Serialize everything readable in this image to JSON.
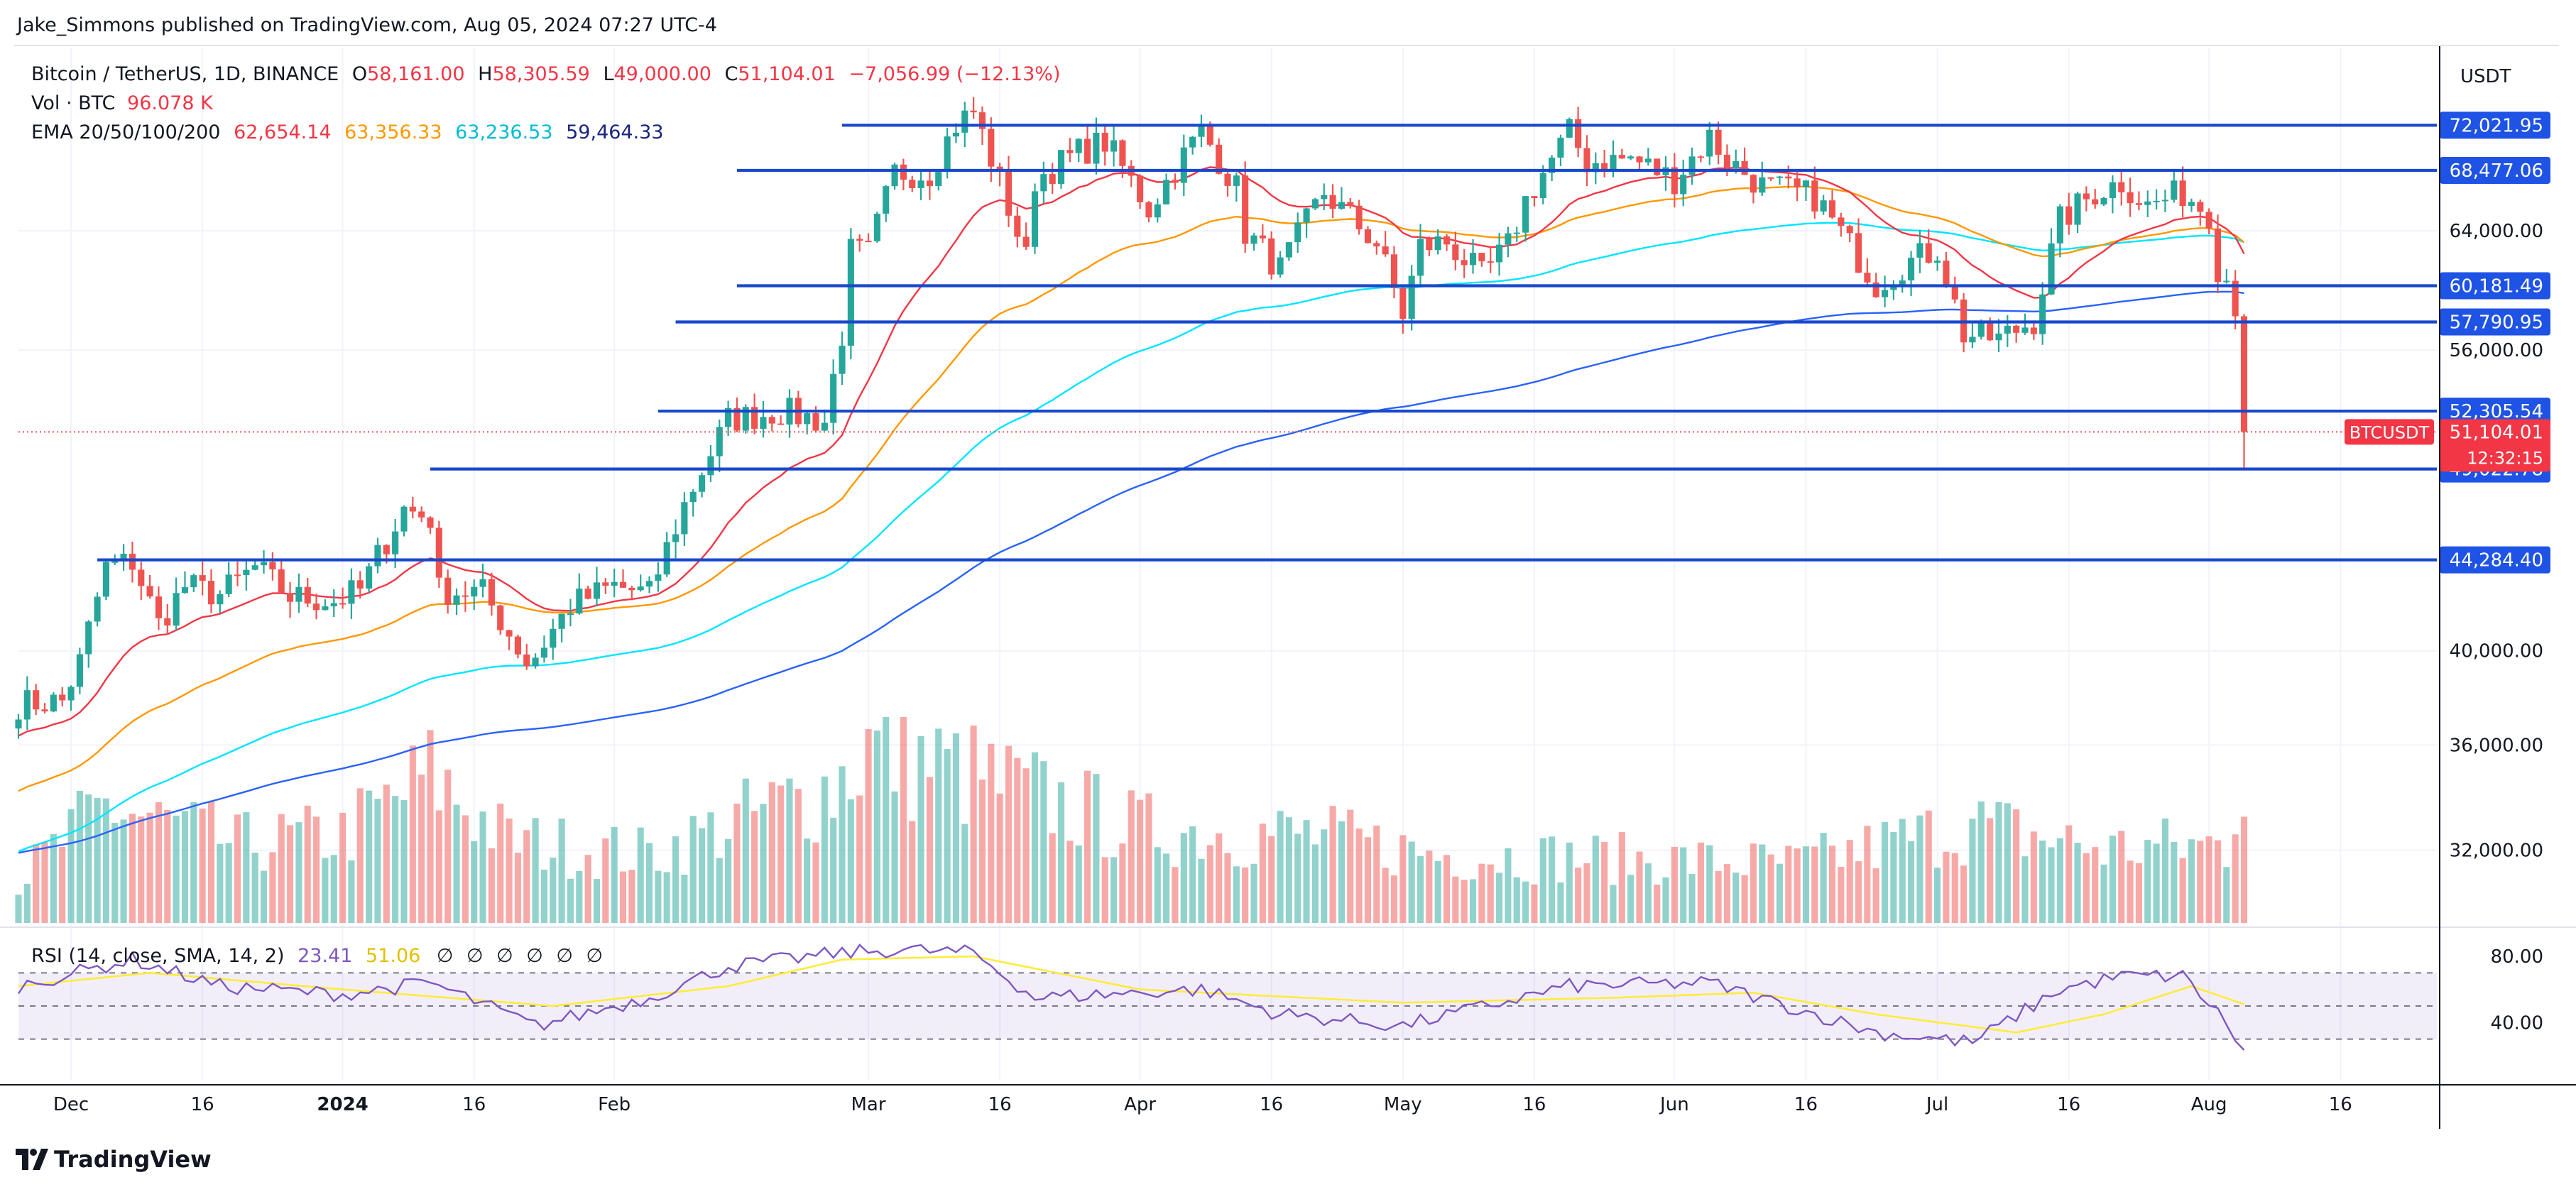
{
  "header": {
    "publisher": "Jake_Simmons published on TradingView.com, Aug 05, 2024 07:27 UTC-4",
    "symbol": "Bitcoin / TetherUS, 1D, BINANCE",
    "o_label": "O",
    "o_value": "58,161.00",
    "h_label": "H",
    "h_value": "58,305.59",
    "l_label": "L",
    "l_value": "49,000.00",
    "c_label": "C",
    "c_value": "51,104.01",
    "change": "−7,056.99 (−12.13%)",
    "vol_label": "Vol · BTC",
    "vol_value": "96.078 K",
    "ema_label": "EMA 20/50/100/200",
    "ema_values": [
      "62,654.14",
      "63,356.33",
      "63,236.53",
      "59,464.33"
    ],
    "rsi_label": "RSI (14, close, SMA, 14, 2)",
    "rsi_values": [
      "23.41",
      "51.06"
    ],
    "rsi_empty": [
      "∅",
      "∅",
      "∅",
      "∅",
      "∅",
      "∅"
    ]
  },
  "colors": {
    "up": "#26a69a",
    "down": "#ef5350",
    "ema20": "#f23645",
    "ema50": "#ff9800",
    "ema100": "#00e5ff",
    "ema200": "#2962ff",
    "level": "#1848cc",
    "rsi": "#7e57c2",
    "rsi_sma": "#ffeb3b",
    "badge": "#f23645"
  },
  "footer": {
    "brand": "TradingView"
  },
  "price_axis": {
    "currency": "USDT"
  },
  "chart_data": {
    "type": "candlestick",
    "symbol_label": "BTCUSDT",
    "last_price": "51,104.01",
    "countdown": "12:32:15",
    "price_scale": "log",
    "y_range": [
      29500,
      78500
    ],
    "y_ticks": [
      {
        "v": 32000,
        "label": "32,000.00"
      },
      {
        "v": 36000,
        "label": "36,000.00"
      },
      {
        "v": 40000,
        "label": "40,000.00"
      },
      {
        "v": 56000,
        "label": "56,000.00"
      },
      {
        "v": 64000,
        "label": "64,000.00"
      }
    ],
    "x_range": [
      "2023-11-25",
      "2024-08-27"
    ],
    "x_ticks": [
      {
        "date": "2023-12-01",
        "label": "Dec"
      },
      {
        "date": "2023-12-16",
        "label": "16"
      },
      {
        "date": "2024-01-01",
        "label": "2024"
      },
      {
        "date": "2024-01-16",
        "label": "16"
      },
      {
        "date": "2024-02-01",
        "label": "Feb"
      },
      {
        "date": "2024-03-01",
        "label": "Mar"
      },
      {
        "date": "2024-03-16",
        "label": "16"
      },
      {
        "date": "2024-04-01",
        "label": "Apr"
      },
      {
        "date": "2024-04-16",
        "label": "16"
      },
      {
        "date": "2024-05-01",
        "label": "May"
      },
      {
        "date": "2024-05-16",
        "label": "16"
      },
      {
        "date": "2024-06-01",
        "label": "Jun"
      },
      {
        "date": "2024-06-16",
        "label": "16"
      },
      {
        "date": "2024-07-01",
        "label": "Jul"
      },
      {
        "date": "2024-07-16",
        "label": "16"
      },
      {
        "date": "2024-08-01",
        "label": "Aug"
      },
      {
        "date": "2024-08-16",
        "label": "16"
      }
    ],
    "horizontal_levels": [
      {
        "value": 72021.95,
        "label": "72,021.95",
        "from": "2024-02-27"
      },
      {
        "value": 68477.06,
        "label": "68,477.06",
        "from": "2024-02-15"
      },
      {
        "value": 60181.49,
        "label": "60,181.49",
        "from": "2024-02-15"
      },
      {
        "value": 57790.95,
        "label": "57,790.95",
        "from": "2024-02-08"
      },
      {
        "value": 52305.54,
        "label": "52,305.54",
        "from": "2024-02-06"
      },
      {
        "value": 49022.78,
        "label": "49,022.78",
        "from": "2024-01-11"
      },
      {
        "value": 44284.4,
        "label": "44,284.40",
        "from": "2023-12-04"
      }
    ],
    "close_anchors": [
      [
        "2023-11-25",
        37700
      ],
      [
        "2023-11-30",
        37800
      ],
      [
        "2023-12-02",
        39500
      ],
      [
        "2023-12-05",
        43900
      ],
      [
        "2023-12-08",
        44200
      ],
      [
        "2023-12-11",
        41200
      ],
      [
        "2023-12-14",
        43000
      ],
      [
        "2023-12-18",
        42600
      ],
      [
        "2023-12-22",
        43900
      ],
      [
        "2023-12-26",
        42500
      ],
      [
        "2023-12-31",
        42300
      ],
      [
        "2024-01-03",
        42800
      ],
      [
        "2024-01-08",
        46900
      ],
      [
        "2024-01-11",
        46400
      ],
      [
        "2024-01-12",
        42800
      ],
      [
        "2024-01-17",
        42700
      ],
      [
        "2024-01-22",
        39500
      ],
      [
        "2024-01-23",
        39800
      ],
      [
        "2024-01-27",
        42100
      ],
      [
        "2024-02-01",
        43000
      ],
      [
        "2024-02-05",
        42600
      ],
      [
        "2024-02-09",
        47100
      ],
      [
        "2024-02-14",
        51800
      ],
      [
        "2024-02-20",
        52300
      ],
      [
        "2024-02-25",
        51700
      ],
      [
        "2024-02-27",
        57000
      ],
      [
        "2024-02-28",
        62500
      ],
      [
        "2024-03-01",
        62400
      ],
      [
        "2024-03-04",
        68300
      ],
      [
        "2024-03-08",
        68300
      ],
      [
        "2024-03-11",
        72100
      ],
      [
        "2024-03-13",
        73100
      ],
      [
        "2024-03-15",
        69400
      ],
      [
        "2024-03-19",
        62000
      ],
      [
        "2024-03-20",
        67800
      ],
      [
        "2024-03-25",
        69900
      ],
      [
        "2024-03-28",
        70700
      ],
      [
        "2024-04-02",
        65600
      ],
      [
        "2024-04-08",
        71600
      ],
      [
        "2024-04-12",
        67100
      ],
      [
        "2024-04-13",
        63900
      ],
      [
        "2024-04-17",
        61300
      ],
      [
        "2024-04-22",
        66800
      ],
      [
        "2024-04-28",
        63100
      ],
      [
        "2024-05-01",
        58300
      ],
      [
        "2024-05-03",
        62900
      ],
      [
        "2024-05-06",
        63200
      ],
      [
        "2024-05-10",
        60800
      ],
      [
        "2024-05-13",
        62900
      ],
      [
        "2024-05-15",
        66200
      ],
      [
        "2024-05-20",
        71400
      ],
      [
        "2024-05-22",
        69100
      ],
      [
        "2024-05-27",
        69400
      ],
      [
        "2024-06-01",
        67800
      ],
      [
        "2024-06-05",
        71100
      ],
      [
        "2024-06-07",
        69300
      ],
      [
        "2024-06-11",
        67300
      ],
      [
        "2024-06-17",
        66500
      ],
      [
        "2024-06-24",
        60300
      ],
      [
        "2024-06-27",
        61600
      ],
      [
        "2024-07-01",
        62700
      ],
      [
        "2024-07-04",
        57000
      ],
      [
        "2024-07-08",
        56700
      ],
      [
        "2024-07-12",
        57900
      ],
      [
        "2024-07-15",
        64700
      ],
      [
        "2024-07-19",
        66800
      ],
      [
        "2024-07-22",
        67600
      ],
      [
        "2024-07-25",
        65800
      ],
      [
        "2024-07-29",
        66800
      ],
      [
        "2024-08-01",
        65300
      ],
      [
        "2024-08-02",
        61500
      ],
      [
        "2024-08-03",
        60700
      ],
      [
        "2024-08-04",
        58161
      ],
      [
        "2024-08-05",
        51104.01
      ]
    ],
    "volume_anchors": [
      [
        "2023-11-25",
        0.22
      ],
      [
        "2023-12-05",
        0.6
      ],
      [
        "2023-12-20",
        0.4
      ],
      [
        "2024-01-01",
        0.45
      ],
      [
        "2024-01-11",
        0.75
      ],
      [
        "2024-01-20",
        0.42
      ],
      [
        "2024-02-05",
        0.35
      ],
      [
        "2024-02-26",
        0.7
      ],
      [
        "2024-03-01",
        0.9
      ],
      [
        "2024-03-15",
        0.72
      ],
      [
        "2024-04-01",
        0.48
      ],
      [
        "2024-04-20",
        0.45
      ],
      [
        "2024-05-05",
        0.35
      ],
      [
        "2024-05-25",
        0.33
      ],
      [
        "2024-06-15",
        0.3
      ],
      [
        "2024-07-05",
        0.5
      ],
      [
        "2024-07-20",
        0.38
      ],
      [
        "2024-08-03",
        0.4
      ],
      [
        "2024-08-05",
        0.8
      ]
    ],
    "rsi": {
      "y_range": [
        5,
        95
      ],
      "y_ticks": [
        {
          "v": 80,
          "label": "80.00"
        },
        {
          "v": 40,
          "label": "40.00"
        }
      ],
      "bands": [
        30,
        50,
        70
      ],
      "rsi_anchors": [
        [
          "2023-11-25",
          62
        ],
        [
          "2023-12-08",
          78
        ],
        [
          "2023-12-18",
          62
        ],
        [
          "2024-01-01",
          57
        ],
        [
          "2024-01-11",
          64
        ],
        [
          "2024-01-23",
          38
        ],
        [
          "2024-02-05",
          55
        ],
        [
          "2024-02-14",
          74
        ],
        [
          "2024-02-27",
          82
        ],
        [
          "2024-03-05",
          84
        ],
        [
          "2024-03-13",
          82
        ],
        [
          "2024-03-20",
          55
        ],
        [
          "2024-04-08",
          60
        ],
        [
          "2024-04-17",
          45
        ],
        [
          "2024-05-01",
          38
        ],
        [
          "2024-05-20",
          62
        ],
        [
          "2024-06-05",
          64
        ],
        [
          "2024-06-24",
          34
        ],
        [
          "2024-07-05",
          28
        ],
        [
          "2024-07-15",
          60
        ],
        [
          "2024-07-22",
          68
        ],
        [
          "2024-07-29",
          68
        ],
        [
          "2024-08-02",
          46
        ],
        [
          "2024-08-05",
          23.41
        ]
      ],
      "sma_anchors": [
        [
          "2023-11-25",
          62
        ],
        [
          "2023-12-10",
          70
        ],
        [
          "2024-01-01",
          60
        ],
        [
          "2024-01-25",
          50
        ],
        [
          "2024-02-14",
          62
        ],
        [
          "2024-02-27",
          78
        ],
        [
          "2024-03-13",
          80
        ],
        [
          "2024-04-01",
          60
        ],
        [
          "2024-05-01",
          52
        ],
        [
          "2024-05-25",
          55
        ],
        [
          "2024-06-10",
          58
        ],
        [
          "2024-06-24",
          45
        ],
        [
          "2024-07-10",
          34
        ],
        [
          "2024-07-20",
          45
        ],
        [
          "2024-07-30",
          62
        ],
        [
          "2024-08-05",
          51.06
        ]
      ]
    }
  }
}
